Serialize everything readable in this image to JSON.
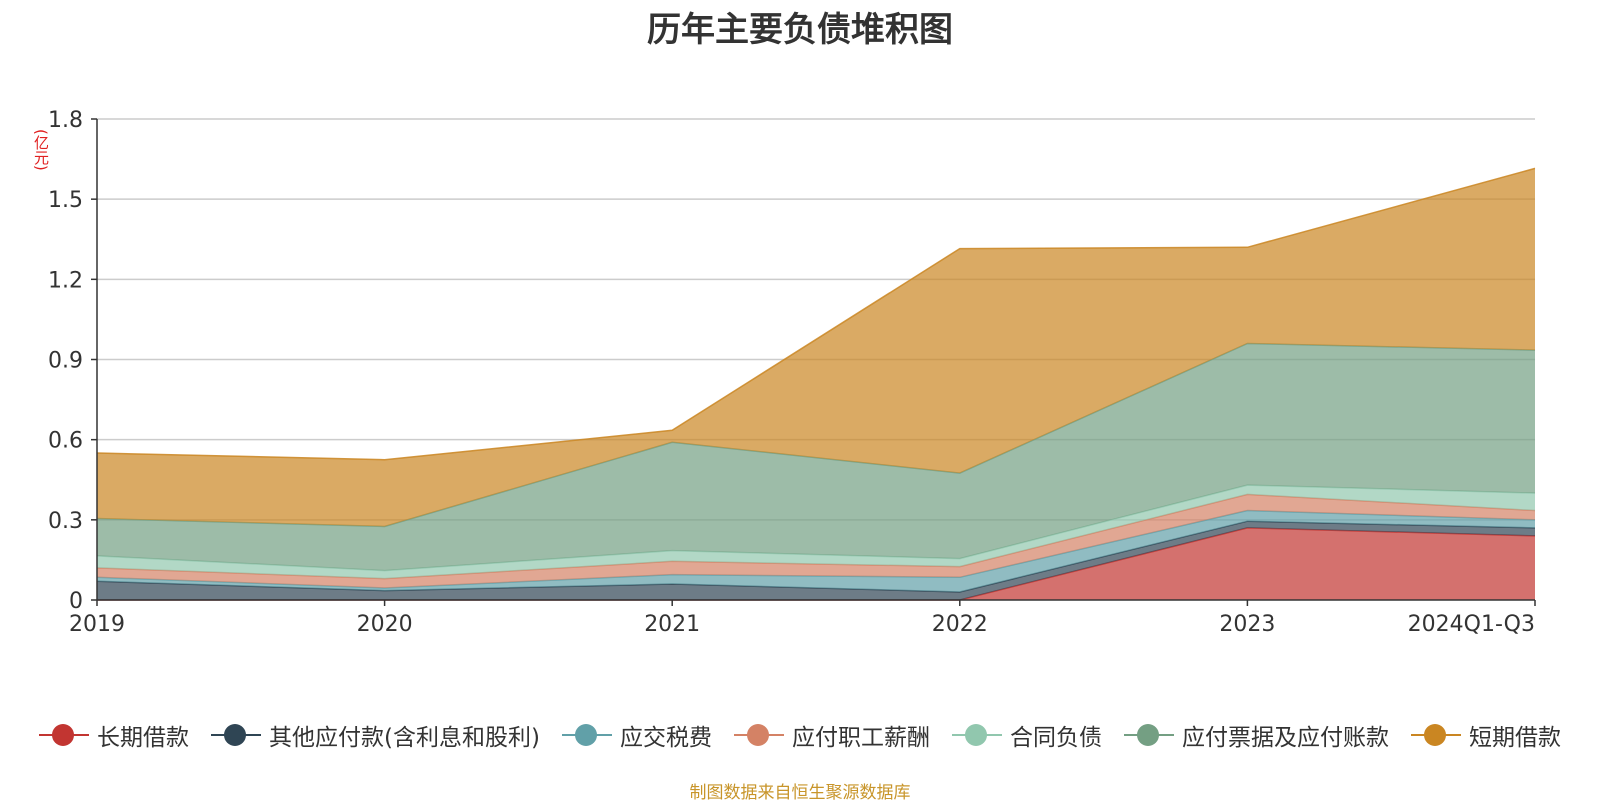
{
  "chart_data": {
    "type": "area",
    "stacked": true,
    "title": "历年主要负债堆积图",
    "ylabel": "(亿元)",
    "ylim": [
      0,
      1.8
    ],
    "yticks": [
      "0",
      "0.3",
      "0.6",
      "0.9",
      "1.2",
      "1.5",
      "1.8"
    ],
    "ytick_values": [
      0,
      0.3,
      0.6,
      0.9,
      1.2,
      1.5,
      1.8
    ],
    "categories": [
      "2019",
      "2020",
      "2021",
      "2022",
      "2023",
      "2024Q1-Q3"
    ],
    "grid": true,
    "legend_position": "bottom",
    "series": [
      {
        "name": "长期借款",
        "color": "#c23531",
        "values": [
          0,
          0,
          0,
          0,
          0.27,
          0.24
        ]
      },
      {
        "name": "其他应付款(含利息和股利)",
        "color": "#2f4554",
        "values": [
          0.07,
          0.035,
          0.06,
          0.03,
          0.025,
          0.03
        ]
      },
      {
        "name": "应交税费",
        "color": "#61a0a8",
        "values": [
          0.015,
          0.01,
          0.035,
          0.055,
          0.04,
          0.03
        ]
      },
      {
        "name": "应付职工薪酬",
        "color": "#d48265",
        "values": [
          0.035,
          0.035,
          0.05,
          0.04,
          0.06,
          0.035
        ]
      },
      {
        "name": "合同负债",
        "color": "#91c7ae",
        "values": [
          0.045,
          0.03,
          0.04,
          0.03,
          0.035,
          0.065
        ]
      },
      {
        "name": "应付票据及应付账款",
        "color": "#749f83",
        "values": [
          0.14,
          0.165,
          0.405,
          0.32,
          0.53,
          0.535
        ]
      },
      {
        "name": "短期借款",
        "color": "#ca8622",
        "values": [
          0.245,
          0.25,
          0.045,
          0.84,
          0.36,
          0.68
        ]
      }
    ]
  },
  "footer": {
    "source": "制图数据来自恒生聚源数据库"
  }
}
